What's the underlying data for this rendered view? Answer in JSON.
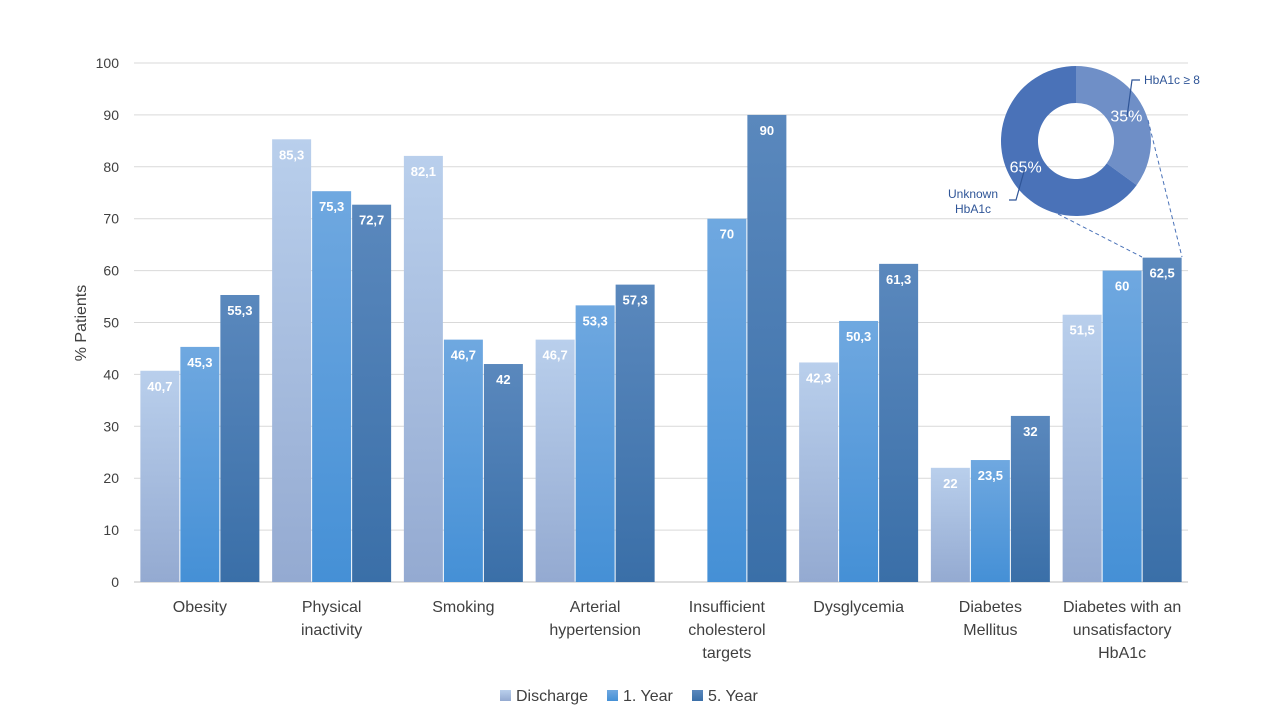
{
  "chart_data": {
    "type": "bar",
    "ylabel": "% Patients",
    "ylim": [
      0,
      100
    ],
    "yticks": [
      0,
      10,
      20,
      30,
      40,
      50,
      60,
      70,
      80,
      90,
      100
    ],
    "grid": true,
    "legend_position": "bottom",
    "categories": [
      [
        "Obesity"
      ],
      [
        "Physical",
        "inactivity"
      ],
      [
        "Smoking"
      ],
      [
        "Arterial",
        "hypertension"
      ],
      [
        "Insufficient",
        "cholesterol",
        "targets"
      ],
      [
        "Dysglycemia"
      ],
      [
        "Diabetes",
        "Mellitus"
      ],
      [
        "Diabetes with an",
        "unsatisfactory",
        "HbA1c"
      ]
    ],
    "series": [
      {
        "name": "Discharge",
        "values": [
          40.7,
          85.3,
          82.1,
          46.7,
          null,
          42.3,
          22,
          51.5
        ],
        "labels": [
          "40,7",
          "85,3",
          "82,1",
          "46,7",
          "",
          "42,3",
          "22",
          "51,5"
        ],
        "color_top": "#b9cfec",
        "color_bottom": "#94aad1"
      },
      {
        "name": "1. Year",
        "values": [
          45.3,
          75.3,
          46.7,
          53.3,
          70,
          50.3,
          23.5,
          60
        ],
        "labels": [
          "45,3",
          "75,3",
          "46,7",
          "53,3",
          "70",
          "50,3",
          "23,5",
          "60"
        ],
        "color_top": "#6fa8e0",
        "color_bottom": "#4590d6"
      },
      {
        "name": "5. Year",
        "values": [
          55.3,
          72.7,
          42,
          57.3,
          90,
          61.3,
          32,
          62.5
        ],
        "labels": [
          "55,3",
          "72,7",
          "42",
          "57,3",
          "90",
          "61,3",
          "32",
          "62,5"
        ],
        "color_top": "#5a88bd",
        "color_bottom": "#3a6fa8"
      }
    ],
    "inset_donut": {
      "type": "pie",
      "slices": [
        {
          "label": "HbA1c ≥ 8",
          "value": 35,
          "pct_label": "35%",
          "color": "#6f8fc7"
        },
        {
          "label": "Unknown HbA1c",
          "value": 65,
          "pct_label": "65%",
          "color": "#4a72b8"
        }
      ]
    }
  }
}
